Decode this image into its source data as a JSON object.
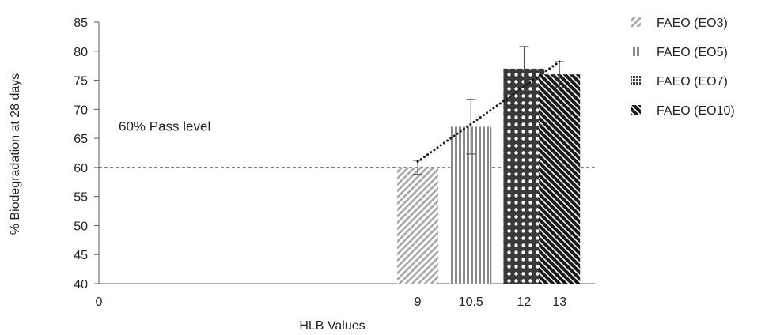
{
  "chart_data": {
    "type": "bar",
    "title": "",
    "xlabel": "HLB Values",
    "ylabel": "% Biodegradation at 28 days",
    "ylim": [
      40,
      85
    ],
    "yticks": [
      40,
      45,
      50,
      55,
      60,
      65,
      70,
      75,
      80,
      85
    ],
    "xlim": [
      0,
      14
    ],
    "xticks": [
      0,
      9,
      10.5,
      12,
      13
    ],
    "xtick_labels": [
      "0",
      "9",
      "10.5",
      "12",
      "13"
    ],
    "grid": false,
    "legend_position": "right",
    "series": [
      {
        "name": "FAEO (EO3)",
        "x": 9,
        "value": 60,
        "error": 1.2,
        "pattern": "diagonal-light",
        "color": "#b0b0b0"
      },
      {
        "name": "FAEO (EO5)",
        "x": 10.5,
        "value": 67,
        "error": 4.7,
        "pattern": "vertical-lines",
        "color": "#8a8a8a"
      },
      {
        "name": "FAEO (EO7)",
        "x": 12,
        "value": 77,
        "error": 3.8,
        "pattern": "dots",
        "color": "#3a3a3a"
      },
      {
        "name": "FAEO (EO10)",
        "x": 13,
        "value": 76,
        "error": 2.2,
        "pattern": "diagonal-dark",
        "color": "#1a1a1a"
      }
    ],
    "trendline": {
      "style": "dotted",
      "points": [
        [
          9,
          61
        ],
        [
          13,
          78.2
        ]
      ]
    },
    "reference_line": {
      "y": 60,
      "style": "dashed",
      "label": "60% Pass level"
    }
  }
}
